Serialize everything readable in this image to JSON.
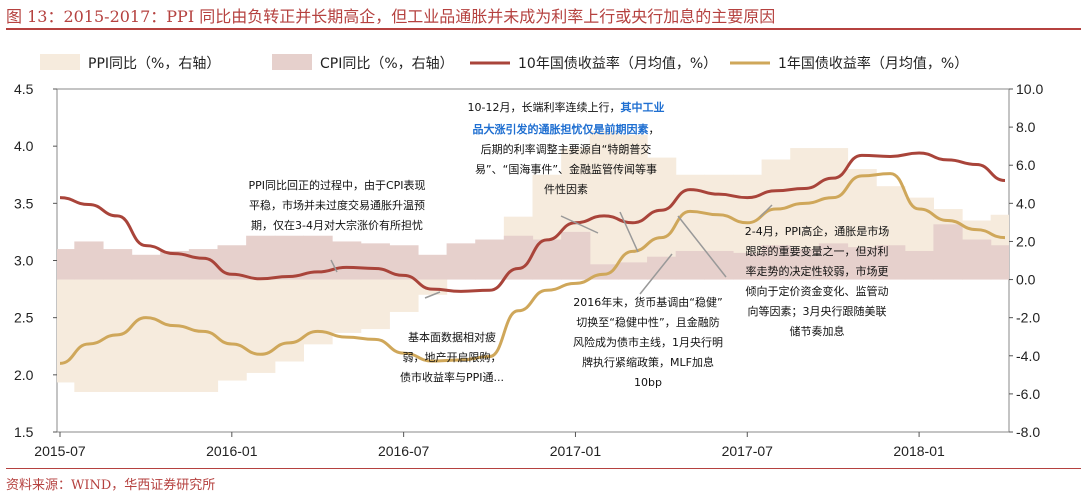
{
  "title": "图 13：2015-2017：PPI 同比由负转正并长期高企，但工业品通胀并未成为利率上行或央行加息的主要原因",
  "source": "资料来源：WIND，华西证券研究所",
  "colors": {
    "brand": "#b5413f",
    "ppi_area": "#f6ebdd",
    "cpi_area": "#e6d0cc",
    "y10": "#a9443a",
    "y1": "#cfa75a",
    "annotation_highlight": "#1f6fd1",
    "axis": "#555555"
  },
  "chart_data": {
    "type": "line",
    "x_ticks": [
      "2015-07",
      "2016-01",
      "2016-07",
      "2017-01",
      "2017-07",
      "2018-01"
    ],
    "x": [
      "2015-07",
      "2015-08",
      "2015-09",
      "2015-10",
      "2015-11",
      "2015-12",
      "2016-01",
      "2016-02",
      "2016-03",
      "2016-04",
      "2016-05",
      "2016-06",
      "2016-07",
      "2016-08",
      "2016-09",
      "2016-10",
      "2016-11",
      "2016-12",
      "2017-01",
      "2017-02",
      "2017-03",
      "2017-04",
      "2017-05",
      "2017-06",
      "2017-07",
      "2017-08",
      "2017-09",
      "2017-10",
      "2017-11",
      "2017-12",
      "2018-01",
      "2018-02",
      "2018-03",
      "2018-04"
    ],
    "y_left": {
      "ticks": [
        "1.5",
        "2.0",
        "2.5",
        "3.0",
        "3.5",
        "4.0",
        "4.5"
      ],
      "range": [
        1.5,
        4.5
      ]
    },
    "y_right": {
      "ticks": [
        "-8.0",
        "-6.0",
        "-4.0",
        "-2.0",
        "0.0",
        "2.0",
        "4.0",
        "6.0",
        "8.0",
        "10.0"
      ],
      "range": [
        -8,
        10
      ]
    },
    "legend": [
      "PPI同比（%，右轴）",
      "CPI同比（%，右轴）",
      "10年国债收益率（月均值，%）",
      "1年国债收益率（月均值，%）"
    ],
    "series": [
      {
        "name": "PPI同比（%，右轴）",
        "type": "area",
        "axis": "right",
        "values": [
          -5.4,
          -5.9,
          -5.9,
          -5.9,
          -5.9,
          -5.9,
          -5.3,
          -4.9,
          -4.3,
          -3.4,
          -2.8,
          -2.6,
          -1.7,
          -0.8,
          0.1,
          1.2,
          3.3,
          5.5,
          6.9,
          7.8,
          7.6,
          6.4,
          5.5,
          5.5,
          5.5,
          6.3,
          6.9,
          6.9,
          5.8,
          4.9,
          4.3,
          3.7,
          3.1,
          3.4
        ]
      },
      {
        "name": "CPI同比（%，右轴）",
        "type": "area",
        "axis": "right",
        "values": [
          1.6,
          2.0,
          1.6,
          1.3,
          1.5,
          1.6,
          1.8,
          2.3,
          2.3,
          2.3,
          2.0,
          1.9,
          1.8,
          1.3,
          1.9,
          2.1,
          2.3,
          2.1,
          2.5,
          0.8,
          0.9,
          1.2,
          1.5,
          1.5,
          1.4,
          1.8,
          1.6,
          1.9,
          1.7,
          1.8,
          1.5,
          2.9,
          2.1,
          1.8
        ]
      },
      {
        "name": "10年国债收益率（月均值，%）",
        "type": "line",
        "axis": "left",
        "values": [
          3.55,
          3.49,
          3.39,
          3.13,
          3.06,
          3.02,
          2.88,
          2.84,
          2.86,
          2.9,
          2.94,
          2.93,
          2.87,
          2.75,
          2.73,
          2.74,
          2.93,
          3.18,
          3.33,
          3.39,
          3.33,
          3.44,
          3.62,
          3.58,
          3.55,
          3.61,
          3.63,
          3.72,
          3.92,
          3.91,
          3.94,
          3.88,
          3.84,
          3.7
        ]
      },
      {
        "name": "1年国债收益率（月均值，%）",
        "type": "line",
        "axis": "left",
        "values": [
          2.1,
          2.27,
          2.35,
          2.5,
          2.43,
          2.38,
          2.27,
          2.18,
          2.28,
          2.38,
          2.33,
          2.31,
          2.19,
          2.12,
          2.13,
          2.16,
          2.56,
          2.74,
          2.8,
          2.88,
          3.08,
          3.2,
          3.43,
          3.4,
          3.33,
          3.45,
          3.5,
          3.55,
          3.74,
          3.76,
          3.45,
          3.35,
          3.27,
          3.2
        ]
      }
    ]
  },
  "annotations": [
    {
      "id": "note1",
      "lines": [
        "PPI同比回正的过程中，由于CPI表现",
        "平稳，市场并未过度交易通胀升温预",
        "期，仅在3-4月对大宗涨价有所担忧"
      ]
    },
    {
      "id": "note2",
      "lines": [
        "基本面数据相对疲",
        "弱，地产开启限购，",
        "债市收益率与PPI通..."
      ]
    },
    {
      "id": "note3",
      "line1_prefix": "10-12月，长端利率连续上行，",
      "line1_hl": "其中工业",
      "line2_hl": "品大涨引发的通胀担忧仅是前期因素",
      "line2_suffix": "，",
      "lines_rest": [
        "后期的利率调整主要源自“特朗普交",
        "易”、“国海事件”、金融监管传闻等事",
        "件性因素"
      ]
    },
    {
      "id": "note4",
      "lines": [
        "2016年末，货币基调由“稳健”",
        "切换至“稳健中性”，且金融防",
        "风险成为债市主线，1月央行明",
        "牌执行紧缩政策，MLF加息",
        "10bp"
      ]
    },
    {
      "id": "note5",
      "lines": [
        "2-4月，PPI高企，通胀是市场",
        "跟踪的重要变量之一，但对利",
        "率走势的决定性较弱，市场更",
        "倾向于定价资金变化、监管动",
        "向等因素；3月央行跟随美联",
        "储节奏加息"
      ]
    }
  ]
}
